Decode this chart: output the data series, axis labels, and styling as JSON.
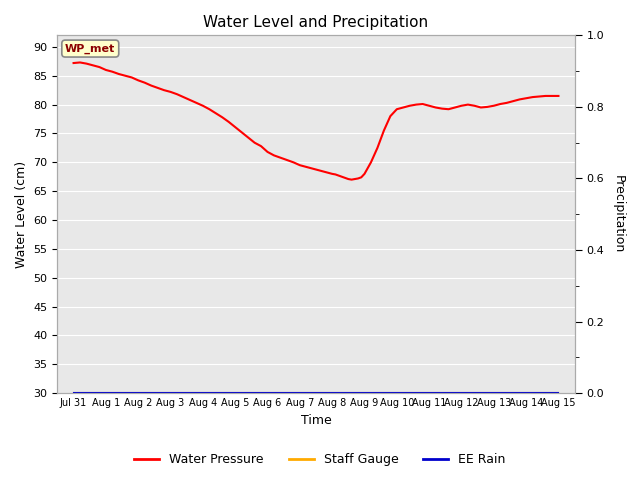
{
  "title": "Water Level and Precipitation",
  "xlabel": "Time",
  "ylabel_left": "Water Level (cm)",
  "ylabel_right": "Precipitation",
  "annotation_text": "WP_met",
  "ylim_left": [
    30,
    92
  ],
  "ylim_right": [
    0.0,
    1.0
  ],
  "yticks_left": [
    30,
    35,
    40,
    45,
    50,
    55,
    60,
    65,
    70,
    75,
    80,
    85,
    90
  ],
  "yticks_right_major": [
    0.0,
    0.2,
    0.4,
    0.6,
    0.8,
    1.0
  ],
  "yticks_right_minor": [
    0.1,
    0.3,
    0.5,
    0.7,
    0.9
  ],
  "xtick_labels": [
    "Jul 31",
    "Aug 1",
    "Aug 2",
    "Aug 3",
    "Aug 4",
    "Aug 5",
    "Aug 6",
    "Aug 7",
    "Aug 8",
    "Aug 9",
    "Aug 10",
    "Aug 11",
    "Aug 12",
    "Aug 13",
    "Aug 14",
    "Aug 15"
  ],
  "plot_bg_color": "#e8e8e8",
  "grid_color": "#ffffff",
  "line_color_wp": "#ff0000",
  "line_color_sg": "#ffaa00",
  "line_color_rain": "#0000cc",
  "legend_labels": [
    "Water Pressure",
    "Staff Gauge",
    "EE Rain"
  ],
  "wp_x": [
    0,
    0.2,
    0.4,
    0.6,
    0.8,
    1.0,
    1.2,
    1.4,
    1.6,
    1.8,
    2.0,
    2.2,
    2.4,
    2.6,
    2.8,
    3.0,
    3.2,
    3.4,
    3.6,
    3.8,
    4.0,
    4.2,
    4.4,
    4.6,
    4.8,
    5.0,
    5.2,
    5.4,
    5.6,
    5.8,
    6.0,
    6.2,
    6.4,
    6.6,
    6.8,
    7.0,
    7.2,
    7.4,
    7.6,
    7.8,
    8.0,
    8.1,
    8.2,
    8.3,
    8.4,
    8.5,
    8.6,
    8.7,
    8.8,
    8.9,
    9.0,
    9.2,
    9.4,
    9.6,
    9.8,
    10.0,
    10.2,
    10.4,
    10.6,
    10.8,
    11.0,
    11.2,
    11.4,
    11.6,
    11.8,
    12.0,
    12.2,
    12.4,
    12.6,
    12.8,
    13.0,
    13.2,
    13.4,
    13.6,
    13.8,
    14.0,
    14.2,
    14.4,
    14.6,
    14.8,
    15.0
  ],
  "wp_y": [
    87.2,
    87.3,
    87.1,
    86.8,
    86.5,
    86.0,
    85.7,
    85.3,
    85.0,
    84.7,
    84.2,
    83.8,
    83.3,
    82.9,
    82.5,
    82.2,
    81.8,
    81.3,
    80.8,
    80.3,
    79.8,
    79.2,
    78.5,
    77.8,
    77.0,
    76.1,
    75.2,
    74.3,
    73.4,
    72.8,
    71.8,
    71.2,
    70.8,
    70.4,
    70.0,
    69.5,
    69.2,
    68.9,
    68.6,
    68.3,
    68.0,
    67.9,
    67.7,
    67.5,
    67.3,
    67.1,
    67.0,
    67.1,
    67.2,
    67.4,
    68.0,
    70.0,
    72.5,
    75.5,
    78.0,
    79.2,
    79.5,
    79.8,
    80.0,
    80.1,
    79.8,
    79.5,
    79.3,
    79.2,
    79.5,
    79.8,
    80.0,
    79.8,
    79.5,
    79.6,
    79.8,
    80.1,
    80.3,
    80.6,
    80.9,
    81.1,
    81.3,
    81.4,
    81.5,
    81.5,
    81.5
  ],
  "figsize": [
    6.4,
    4.8
  ],
  "dpi": 100
}
